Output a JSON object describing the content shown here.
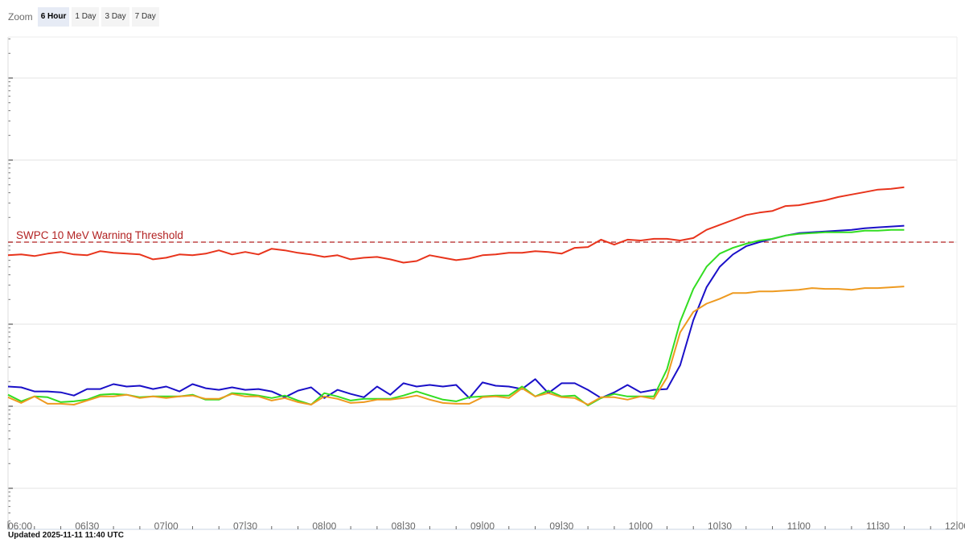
{
  "zoom": {
    "label": "Zoom",
    "buttons": [
      "6 Hour",
      "1 Day",
      "3 Day",
      "7 Day"
    ],
    "active": "6 Hour"
  },
  "updated": "Updated 2025-11-11 11:40 UTC",
  "colors": {
    "grid": "#e3e3e3",
    "axis": "#c8d4e3",
    "tick_label": "#666666",
    "threshold": "#b22222"
  },
  "chart_data": {
    "type": "line",
    "title": "",
    "xlabel": "",
    "ylabel": "",
    "x_axis": {
      "unit": "minutes after 06:00 UTC",
      "range": [
        0,
        360
      ],
      "tick_labels": [
        "06:00",
        "06:30",
        "07:00",
        "07:30",
        "08:00",
        "08:30",
        "09:00",
        "09:30",
        "10:00",
        "10:30",
        "11:00",
        "11:30",
        "12:00"
      ],
      "tick_values": [
        0,
        30,
        60,
        90,
        120,
        150,
        180,
        210,
        240,
        270,
        300,
        330,
        360
      ]
    },
    "y_axis": {
      "scale": "log",
      "range_decades": [
        -1.5,
        4.5
      ],
      "tick_labels_shown": false
    },
    "grid": true,
    "threshold": {
      "label": "SWPC 10 MeV Warning Threshold",
      "value_decade": 2.0
    },
    "series": [
      {
        "color": "#e8341c",
        "x": [
          0,
          5,
          10,
          15,
          20,
          25,
          30,
          35,
          40,
          45,
          50,
          55,
          60,
          65,
          70,
          75,
          80,
          85,
          90,
          95,
          100,
          105,
          110,
          115,
          120,
          125,
          130,
          135,
          140,
          145,
          150,
          155,
          160,
          165,
          170,
          175,
          180,
          185,
          190,
          195,
          200,
          205,
          210,
          215,
          220,
          225,
          230,
          235,
          240,
          245,
          250,
          255,
          260,
          265,
          270,
          275,
          280,
          285,
          290,
          295,
          300,
          305,
          310,
          315,
          320,
          325,
          330,
          335,
          340
        ],
        "y": [
          1.84,
          1.85,
          1.83,
          1.86,
          1.88,
          1.85,
          1.84,
          1.89,
          1.87,
          1.86,
          1.85,
          1.79,
          1.81,
          1.85,
          1.84,
          1.86,
          1.9,
          1.85,
          1.88,
          1.85,
          1.92,
          1.9,
          1.87,
          1.85,
          1.82,
          1.84,
          1.79,
          1.81,
          1.82,
          1.79,
          1.75,
          1.77,
          1.84,
          1.81,
          1.78,
          1.8,
          1.84,
          1.85,
          1.87,
          1.87,
          1.89,
          1.88,
          1.86,
          1.93,
          1.94,
          2.03,
          1.97,
          2.03,
          2.02,
          2.04,
          2.04,
          2.02,
          2.05,
          2.15,
          2.21,
          2.27,
          2.33,
          2.36,
          2.38,
          2.44,
          2.45,
          2.48,
          2.51,
          2.55,
          2.58,
          2.61,
          2.64,
          2.65,
          2.67
        ]
      },
      {
        "color": "#1a10c8",
        "x": [
          0,
          5,
          10,
          15,
          20,
          25,
          30,
          35,
          40,
          45,
          50,
          55,
          60,
          65,
          70,
          75,
          80,
          85,
          90,
          95,
          100,
          105,
          110,
          115,
          120,
          125,
          130,
          135,
          140,
          145,
          150,
          155,
          160,
          165,
          170,
          175,
          180,
          185,
          190,
          195,
          200,
          205,
          210,
          215,
          220,
          225,
          230,
          235,
          240,
          245,
          250,
          255,
          260,
          265,
          270,
          275,
          280,
          285,
          290,
          295,
          300,
          305,
          310,
          315,
          320,
          325,
          330,
          335,
          340
        ],
        "y": [
          0.24,
          0.23,
          0.18,
          0.18,
          0.17,
          0.13,
          0.21,
          0.21,
          0.27,
          0.24,
          0.25,
          0.21,
          0.24,
          0.18,
          0.27,
          0.22,
          0.2,
          0.23,
          0.2,
          0.21,
          0.18,
          0.11,
          0.19,
          0.23,
          0.1,
          0.2,
          0.15,
          0.11,
          0.24,
          0.14,
          0.28,
          0.24,
          0.26,
          0.24,
          0.26,
          0.1,
          0.29,
          0.25,
          0.24,
          0.21,
          0.33,
          0.16,
          0.28,
          0.28,
          0.2,
          0.1,
          0.17,
          0.26,
          0.17,
          0.2,
          0.21,
          0.5,
          1.05,
          1.45,
          1.7,
          1.85,
          1.95,
          2.0,
          2.04,
          2.08,
          2.11,
          2.12,
          2.13,
          2.14,
          2.15,
          2.17,
          2.18,
          2.19,
          2.2
        ]
      },
      {
        "color": "#33dd22",
        "x": [
          0,
          5,
          10,
          15,
          20,
          25,
          30,
          35,
          40,
          45,
          50,
          55,
          60,
          65,
          70,
          75,
          80,
          85,
          90,
          95,
          100,
          105,
          110,
          115,
          120,
          125,
          130,
          135,
          140,
          145,
          150,
          155,
          160,
          165,
          170,
          175,
          180,
          185,
          190,
          195,
          200,
          205,
          210,
          215,
          220,
          225,
          230,
          235,
          240,
          245,
          250,
          255,
          260,
          265,
          270,
          275,
          280,
          285,
          290,
          295,
          300,
          305,
          310,
          315,
          320,
          325,
          330,
          335,
          340
        ],
        "y": [
          0.14,
          0.06,
          0.12,
          0.11,
          0.05,
          0.06,
          0.08,
          0.14,
          0.15,
          0.14,
          0.11,
          0.12,
          0.12,
          0.12,
          0.14,
          0.08,
          0.08,
          0.16,
          0.15,
          0.13,
          0.1,
          0.13,
          0.07,
          0.02,
          0.16,
          0.12,
          0.07,
          0.09,
          0.09,
          0.09,
          0.13,
          0.18,
          0.13,
          0.08,
          0.06,
          0.11,
          0.12,
          0.13,
          0.13,
          0.24,
          0.12,
          0.19,
          0.12,
          0.13,
          0.01,
          0.1,
          0.15,
          0.12,
          0.12,
          0.12,
          0.45,
          1.03,
          1.43,
          1.7,
          1.86,
          1.93,
          1.98,
          2.02,
          2.04,
          2.08,
          2.1,
          2.11,
          2.12,
          2.12,
          2.12,
          2.14,
          2.14,
          2.15,
          2.15
        ]
      },
      {
        "color": "#ee9a20",
        "x": [
          0,
          5,
          10,
          15,
          20,
          25,
          30,
          35,
          40,
          45,
          50,
          55,
          60,
          65,
          70,
          75,
          80,
          85,
          90,
          95,
          100,
          105,
          110,
          115,
          120,
          125,
          130,
          135,
          140,
          145,
          150,
          155,
          160,
          165,
          170,
          175,
          180,
          185,
          190,
          195,
          200,
          205,
          210,
          215,
          220,
          225,
          230,
          235,
          240,
          245,
          250,
          255,
          260,
          265,
          270,
          275,
          280,
          285,
          290,
          295,
          300,
          305,
          310,
          315,
          320,
          325,
          330,
          335,
          340
        ],
        "y": [
          0.11,
          0.04,
          0.12,
          0.03,
          0.03,
          0.02,
          0.07,
          0.12,
          0.12,
          0.14,
          0.1,
          0.12,
          0.1,
          0.12,
          0.13,
          0.09,
          0.09,
          0.15,
          0.12,
          0.12,
          0.07,
          0.1,
          0.05,
          0.02,
          0.12,
          0.09,
          0.04,
          0.05,
          0.08,
          0.08,
          0.1,
          0.13,
          0.08,
          0.04,
          0.03,
          0.03,
          0.11,
          0.12,
          0.1,
          0.22,
          0.12,
          0.16,
          0.11,
          0.1,
          0.02,
          0.11,
          0.11,
          0.08,
          0.12,
          0.09,
          0.35,
          0.9,
          1.15,
          1.25,
          1.31,
          1.38,
          1.38,
          1.4,
          1.4,
          1.41,
          1.42,
          1.44,
          1.43,
          1.43,
          1.42,
          1.44,
          1.44,
          1.45,
          1.46
        ]
      }
    ]
  }
}
